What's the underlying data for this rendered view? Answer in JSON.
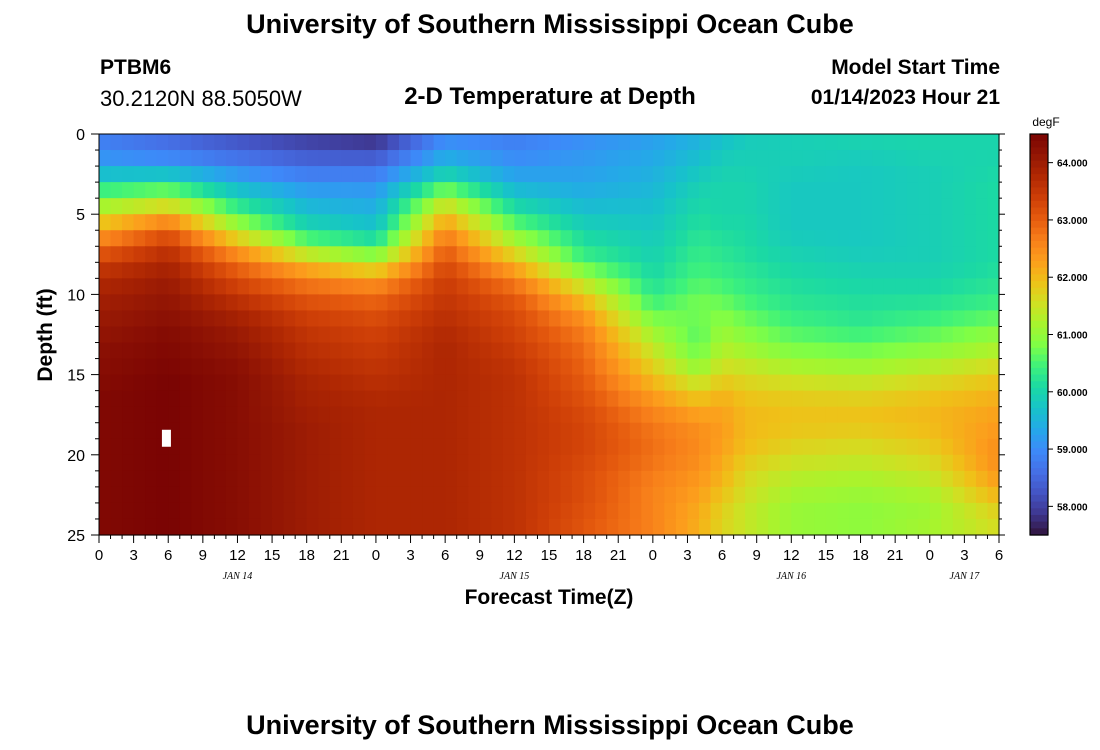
{
  "header": {
    "title": "University of Southern Mississippi Ocean Cube",
    "station_id": "PTBM6",
    "station_coords": "30.2120N  88.5050W",
    "plot_title": "2-D Temperature at Depth",
    "model_start_label": "Model Start Time",
    "model_start_value": "01/14/2023 Hour 21"
  },
  "footer": {
    "title": "University of Southern Mississippi Ocean Cube"
  },
  "chart_data": {
    "type": "heatmap",
    "title": "2-D Temperature at Depth",
    "xlabel": "Forecast Time(Z)",
    "ylabel": "Depth (ft)",
    "x_range_hours": [
      0,
      78
    ],
    "y_range_ft": [
      0,
      25
    ],
    "x_ticks": [
      {
        "h": 0,
        "label": "0"
      },
      {
        "h": 3,
        "label": "3"
      },
      {
        "h": 6,
        "label": "6"
      },
      {
        "h": 9,
        "label": "9"
      },
      {
        "h": 12,
        "label": "12"
      },
      {
        "h": 15,
        "label": "15"
      },
      {
        "h": 18,
        "label": "18"
      },
      {
        "h": 21,
        "label": "21"
      },
      {
        "h": 24,
        "label": "0"
      },
      {
        "h": 27,
        "label": "3"
      },
      {
        "h": 30,
        "label": "6"
      },
      {
        "h": 33,
        "label": "9"
      },
      {
        "h": 36,
        "label": "12"
      },
      {
        "h": 39,
        "label": "15"
      },
      {
        "h": 42,
        "label": "18"
      },
      {
        "h": 45,
        "label": "21"
      },
      {
        "h": 48,
        "label": "0"
      },
      {
        "h": 51,
        "label": "3"
      },
      {
        "h": 54,
        "label": "6"
      },
      {
        "h": 57,
        "label": "9"
      },
      {
        "h": 60,
        "label": "12"
      },
      {
        "h": 63,
        "label": "15"
      },
      {
        "h": 66,
        "label": "18"
      },
      {
        "h": 69,
        "label": "21"
      },
      {
        "h": 72,
        "label": "0"
      },
      {
        "h": 75,
        "label": "3"
      },
      {
        "h": 78,
        "label": "6"
      }
    ],
    "day_labels": [
      {
        "h": 12,
        "label": "JAN 14"
      },
      {
        "h": 36,
        "label": "JAN 15"
      },
      {
        "h": 60,
        "label": "JAN 16"
      },
      {
        "h": 75,
        "label": "JAN 17"
      }
    ],
    "y_ticks": [
      0,
      5,
      10,
      15,
      20,
      25
    ],
    "colorbar": {
      "unit": "degF",
      "min": 57.5,
      "max": 64.5,
      "ticks": [
        "58.000",
        "59.000",
        "60.000",
        "61.000",
        "62.000",
        "63.000",
        "64.000"
      ],
      "tick_values": [
        58,
        59,
        60,
        61,
        62,
        63,
        64
      ]
    },
    "time_hours": [
      0,
      6,
      12,
      18,
      24,
      30,
      36,
      42,
      48,
      52,
      54,
      56,
      60,
      66,
      72,
      78
    ],
    "depth_ft": [
      0,
      1,
      2,
      3,
      4,
      5,
      6,
      7,
      8,
      9,
      10,
      11,
      12,
      13,
      14,
      15,
      16,
      17,
      18,
      19,
      20,
      21,
      22,
      23,
      24,
      25
    ],
    "values_degF": [
      [
        58.8,
        58.5,
        58.2,
        57.9,
        57.7,
        58.9,
        58.8,
        59.0,
        59.2,
        59.4,
        59.6,
        59.8,
        59.9,
        60.0,
        60.0,
        60.0
      ],
      [
        58.9,
        58.7,
        58.4,
        58.2,
        58.1,
        59.2,
        58.9,
        59.1,
        59.3,
        59.6,
        59.8,
        59.9,
        59.9,
        59.9,
        60.0,
        60.0
      ],
      [
        59.3,
        59.2,
        58.9,
        58.6,
        58.6,
        59.6,
        59.1,
        59.2,
        59.4,
        59.7,
        59.9,
        59.9,
        59.9,
        59.8,
        59.9,
        60.0
      ],
      [
        60.0,
        60.2,
        59.4,
        59.0,
        59.0,
        60.3,
        59.4,
        59.3,
        59.5,
        59.9,
        60.0,
        60.0,
        59.8,
        59.8,
        59.9,
        60.1
      ],
      [
        60.8,
        61.1,
        60.0,
        59.4,
        59.3,
        61.2,
        59.8,
        59.5,
        59.6,
        60.0,
        60.0,
        60.0,
        59.8,
        59.8,
        59.9,
        60.1
      ],
      [
        61.5,
        62.1,
        60.6,
        59.7,
        59.5,
        61.9,
        60.3,
        59.7,
        59.7,
        60.1,
        60.0,
        60.0,
        59.8,
        59.8,
        59.9,
        60.1
      ],
      [
        62.2,
        63.0,
        61.3,
        60.1,
        59.8,
        62.5,
        60.8,
        60.0,
        59.8,
        60.2,
        60.1,
        60.1,
        59.8,
        59.8,
        59.9,
        60.1
      ],
      [
        62.8,
        63.5,
        62.2,
        60.9,
        60.4,
        62.9,
        61.4,
        60.2,
        59.9,
        60.3,
        60.2,
        60.1,
        59.9,
        59.8,
        59.9,
        60.1
      ],
      [
        63.4,
        63.8,
        62.8,
        61.9,
        61.3,
        63.2,
        62.0,
        60.5,
        60.0,
        60.4,
        60.3,
        60.2,
        60.0,
        59.9,
        59.9,
        60.1
      ],
      [
        63.7,
        64.0,
        63.2,
        62.6,
        62.3,
        63.4,
        62.6,
        61.2,
        60.1,
        60.5,
        60.4,
        60.3,
        60.1,
        60.0,
        60.0,
        60.2
      ],
      [
        63.9,
        64.1,
        63.5,
        63.0,
        62.8,
        63.5,
        63.0,
        61.8,
        60.3,
        60.7,
        60.6,
        60.4,
        60.2,
        60.1,
        60.1,
        60.3
      ],
      [
        64.0,
        64.2,
        63.8,
        63.3,
        63.1,
        63.6,
        63.2,
        62.3,
        60.6,
        60.8,
        60.8,
        60.6,
        60.3,
        60.2,
        60.3,
        60.5
      ],
      [
        64.1,
        64.3,
        64.0,
        63.5,
        63.3,
        63.7,
        63.3,
        62.6,
        61.0,
        60.6,
        61.0,
        60.8,
        60.5,
        60.3,
        60.5,
        60.8
      ],
      [
        64.2,
        64.4,
        64.1,
        63.6,
        63.4,
        63.8,
        63.4,
        62.8,
        61.3,
        60.6,
        61.2,
        61.0,
        60.7,
        60.6,
        60.8,
        61.1
      ],
      [
        64.3,
        64.4,
        64.2,
        63.7,
        63.5,
        63.8,
        63.5,
        62.9,
        61.6,
        60.8,
        61.4,
        61.3,
        61.0,
        60.9,
        61.1,
        61.4
      ],
      [
        64.3,
        64.5,
        64.3,
        63.8,
        63.6,
        63.8,
        63.6,
        63.0,
        61.9,
        61.2,
        61.7,
        61.6,
        61.4,
        61.3,
        61.5,
        61.8
      ],
      [
        64.4,
        64.5,
        64.3,
        63.9,
        63.7,
        63.8,
        63.6,
        63.1,
        62.2,
        61.7,
        62.0,
        61.8,
        61.7,
        61.6,
        61.8,
        62.0
      ],
      [
        64.4,
        64.5,
        64.3,
        63.9,
        63.8,
        63.8,
        63.6,
        63.2,
        62.5,
        62.1,
        62.2,
        62.0,
        61.9,
        61.9,
        62.0,
        62.2
      ],
      [
        64.4,
        64.5,
        64.3,
        64.0,
        63.8,
        63.8,
        63.6,
        63.3,
        62.7,
        62.4,
        62.3,
        62.0,
        61.9,
        61.9,
        62.0,
        62.3
      ],
      [
        64.4,
        64.5,
        64.3,
        64.0,
        63.8,
        63.8,
        63.6,
        63.3,
        62.8,
        62.5,
        62.3,
        62.0,
        61.8,
        61.7,
        61.9,
        62.4
      ],
      [
        64.4,
        64.5,
        64.3,
        64.0,
        63.8,
        63.8,
        63.6,
        63.3,
        62.8,
        62.5,
        62.2,
        61.9,
        61.6,
        61.5,
        61.7,
        62.5
      ],
      [
        64.4,
        64.5,
        64.3,
        64.0,
        63.8,
        63.8,
        63.6,
        63.2,
        62.7,
        62.4,
        62.1,
        61.7,
        61.4,
        61.3,
        61.5,
        62.4
      ],
      [
        64.4,
        64.5,
        64.3,
        64.0,
        63.8,
        63.8,
        63.6,
        63.2,
        62.6,
        62.3,
        62.0,
        61.6,
        61.2,
        61.1,
        61.3,
        62.2
      ],
      [
        64.4,
        64.5,
        64.3,
        64.0,
        63.8,
        63.8,
        63.6,
        63.2,
        62.6,
        62.2,
        61.8,
        61.5,
        61.1,
        61.0,
        61.1,
        61.9
      ],
      [
        64.4,
        64.5,
        64.3,
        64.0,
        63.8,
        63.8,
        63.6,
        63.1,
        62.6,
        62.1,
        61.7,
        61.4,
        61.0,
        60.9,
        61.1,
        61.6
      ],
      [
        64.4,
        64.5,
        64.3,
        64.0,
        63.8,
        63.8,
        63.6,
        63.1,
        62.6,
        62.1,
        61.7,
        61.5,
        61.1,
        61.0,
        61.2,
        61.6
      ]
    ],
    "missing_data_markers": [
      {
        "hour": 5.8,
        "depth_ft": 19
      }
    ]
  },
  "colors": {
    "ramp": [
      "#30123b",
      "#3e378f",
      "#4454c4",
      "#4570e6",
      "#3d8af9",
      "#24a9e8",
      "#17c3c9",
      "#1bd9a4",
      "#3ef27b",
      "#7ffe46",
      "#a8f42d",
      "#d1df22",
      "#efc118",
      "#fc9d1c",
      "#f77e1a",
      "#e55a0e",
      "#cd3e07",
      "#b02803",
      "#931604",
      "#7a0403"
    ],
    "missing": "#ffffff"
  }
}
